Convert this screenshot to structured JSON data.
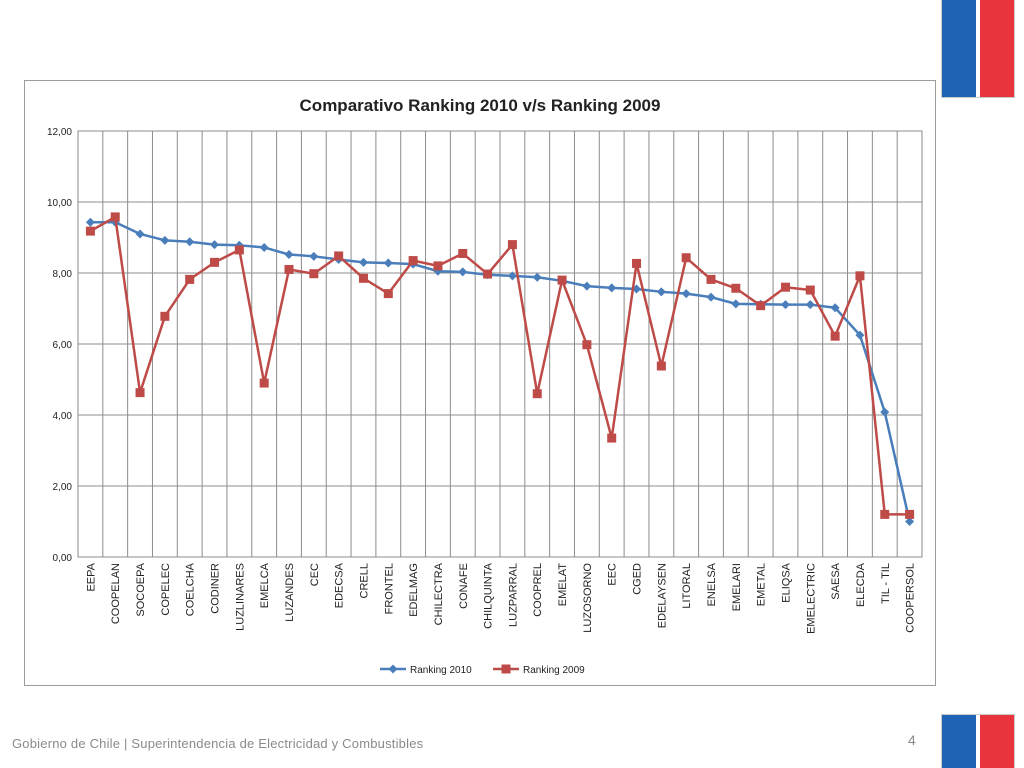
{
  "colors": {
    "flag_blue": "#1e63b4",
    "flag_red": "#e9343e",
    "series_2010": "#4a7ebb",
    "series_2009": "#be4b48"
  },
  "footer": {
    "text": "Gobierno de Chile | Superintendencia de Electricidad y Combustibles",
    "page_number": "4"
  },
  "chart_data": {
    "type": "line",
    "title": "Comparativo Ranking 2010 v/s Ranking 2009",
    "xlabel": "",
    "ylabel": "",
    "ylim": [
      0,
      12
    ],
    "yticks": [
      "0,00",
      "2,00",
      "4,00",
      "6,00",
      "8,00",
      "10,00",
      "12,00"
    ],
    "grid": true,
    "legend_position": "bottom",
    "categories": [
      "EEPA",
      "COOPELAN",
      "SOCOEPA",
      "COPELEC",
      "COELCHA",
      "CODINER",
      "LUZLINARES",
      "EMELCA",
      "LUZANDES",
      "CEC",
      "EDECSA",
      "CRELL",
      "FRONTEL",
      "EDELMAG",
      "CHILECTRA",
      "CONAFE",
      "CHILQUINTA",
      "LUZPARRAL",
      "COOPREL",
      "EMELAT",
      "LUZOSORNO",
      "EEC",
      "CGED",
      "EDELAYSEN",
      "LITORAL",
      "ENELSA",
      "EMELARI",
      "EMETAL",
      "ELIQSA",
      "EMELECTRIC",
      "SAESA",
      "ELECDA",
      "TIL - TIL",
      "COOPERSOL"
    ],
    "series": [
      {
        "name": "Ranking 2010",
        "marker": "diamond",
        "values": [
          9.43,
          9.43,
          9.1,
          8.92,
          8.88,
          8.8,
          8.78,
          8.72,
          8.52,
          8.47,
          8.38,
          8.3,
          8.28,
          8.25,
          8.05,
          8.03,
          7.95,
          7.92,
          7.88,
          7.78,
          7.63,
          7.58,
          7.55,
          7.47,
          7.42,
          7.32,
          7.13,
          7.12,
          7.11,
          7.11,
          7.02,
          6.25,
          4.08,
          1.0
        ]
      },
      {
        "name": "Ranking 2009",
        "marker": "square",
        "values": [
          9.18,
          9.58,
          4.63,
          6.78,
          7.82,
          8.3,
          8.65,
          4.9,
          8.1,
          7.98,
          8.48,
          7.85,
          7.42,
          8.35,
          8.2,
          8.55,
          7.97,
          8.8,
          4.6,
          7.8,
          5.98,
          3.35,
          8.27,
          5.38,
          8.43,
          7.82,
          7.57,
          7.08,
          7.6,
          7.52,
          6.22,
          7.92,
          1.2,
          1.2
        ]
      }
    ]
  }
}
